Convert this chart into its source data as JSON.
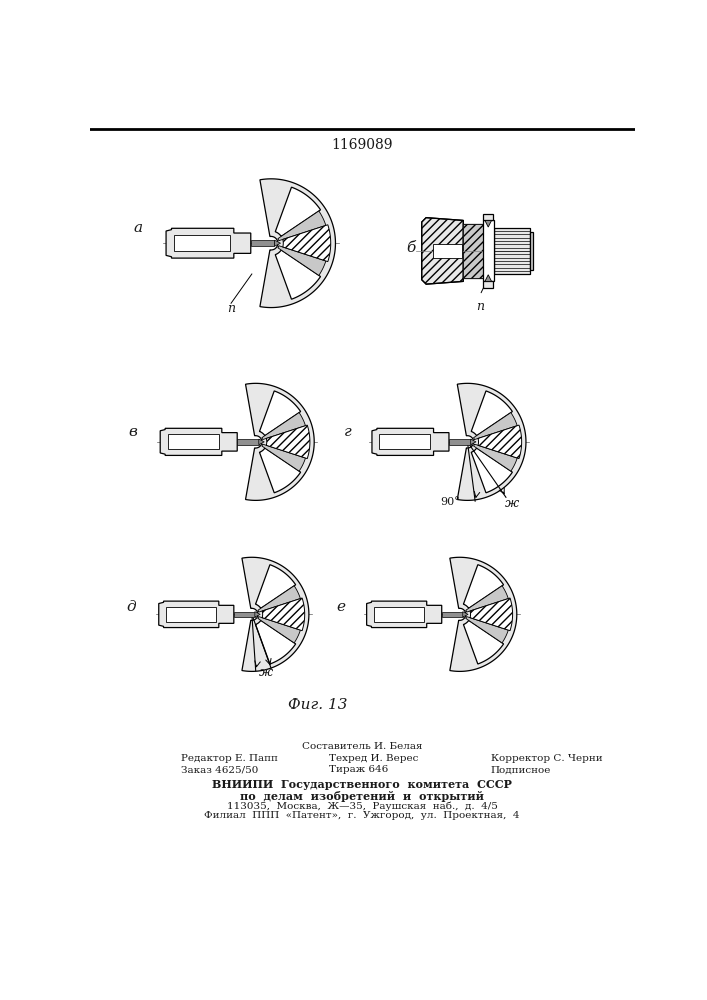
{
  "patent_number": "1169089",
  "figure_label": "Фиг. 13",
  "bg_color": "#ffffff",
  "text_color": "#1a1a1a",
  "line_color": "#000000",
  "footer": {
    "col1": [
      "",
      "Редактор Е. Папп",
      "Заказ 4625/50"
    ],
    "col2": [
      "Составитель И. Белая",
      "Техред И. Верес",
      "Тираж 646"
    ],
    "col3": [
      "",
      "Корректор С. Черни",
      "Подписное"
    ],
    "vnipi": [
      "ВНИИПИ  Государственного  комитета  СССР",
      "по  делам  изобретений  и  открытий",
      "113035,  Москва,  Ж—5,  Раушская  наб.,  д.  4/5",
      "Филиал  ППП  «Патент»,  г.  Ужгород,  ул.  Проектная,  4"
    ]
  }
}
